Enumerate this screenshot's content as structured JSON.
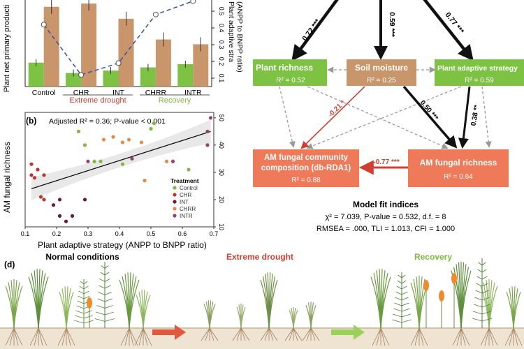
{
  "panel_a": {
    "y_left_label": "Plant net primary producti",
    "y_right_label_1": "Plant adaptive stra",
    "y_right_label_2": "(ANPP to BNPP ratio)",
    "right_ticks": [
      "0.5",
      "0.4",
      "0.3",
      "0.2",
      "0.1"
    ],
    "treatments": [
      "Control",
      "CHR",
      "INT",
      "CHRR",
      "INTR"
    ],
    "group_extreme": "Extreme drought",
    "group_recovery": "Recovery",
    "colors": {
      "anpp": "#7dc243",
      "bnpp": "#c8966a",
      "ratio_line": "#3a4fa0",
      "drought": "#d04030",
      "recovery": "#7dbb3c"
    }
  },
  "chart_data": [
    {
      "type": "bar",
      "panel": "a",
      "categories": [
        "Control",
        "CHR",
        "INT",
        "CHRR",
        "INTR"
      ],
      "series": [
        {
          "values": [
            0.3,
            0.17,
            0.2,
            0.24,
            0.28
          ]
        },
        {
          "values": [
            1.0,
            1.04,
            0.85,
            0.59,
            0.53
          ]
        }
      ],
      "ratio_line": [
        0.42,
        0.12,
        0.19,
        0.48,
        0.56
      ]
    },
    {
      "type": "scatter",
      "panel": "b",
      "title": "Adjusted R² = 0.36; P-value < 0.001",
      "xlabel": "Plant adaptive strategy (ANPP to BNPP ratio)",
      "ylabel": "AM fungal richness",
      "xlim": [
        0.1,
        0.7
      ],
      "ylim": [
        10,
        52
      ],
      "xticks": [
        "0.1",
        "0.2",
        "0.3",
        "0.4",
        "0.5",
        "0.6",
        "0.7"
      ],
      "yticks": [
        "10",
        "20",
        "30",
        "40",
        "50"
      ],
      "legend_title": "Treatment",
      "legend": [
        "Control",
        "CHR",
        "INT",
        "CHRR",
        "INTR"
      ],
      "series": [
        {
          "name": "Control",
          "color": "#7dbb3c",
          "points": [
            [
              0.27,
              45
            ],
            [
              0.29,
              40
            ],
            [
              0.32,
              34
            ],
            [
              0.34,
              34
            ],
            [
              0.41,
              33
            ],
            [
              0.5,
              46
            ],
            [
              0.51,
              48
            ],
            [
              0.62,
              31
            ]
          ]
        },
        {
          "name": "CHR",
          "color": "#c0332b",
          "points": [
            [
              0.12,
              33
            ],
            [
              0.12,
              29
            ],
            [
              0.13,
              28
            ],
            [
              0.14,
              31
            ],
            [
              0.16,
              29
            ],
            [
              0.15,
              21
            ],
            [
              0.16,
              20
            ]
          ]
        },
        {
          "name": "INT",
          "color": "#6a1a3a",
          "points": [
            [
              0.19,
              18
            ],
            [
              0.21,
              14
            ],
            [
              0.23,
              12
            ],
            [
              0.25,
              14
            ],
            [
              0.29,
              20
            ],
            [
              0.21,
              20
            ]
          ]
        },
        {
          "name": "CHRR",
          "color": "#e08a4c",
          "points": [
            [
              0.38,
              43
            ],
            [
              0.41,
              41
            ],
            [
              0.43,
              42
            ],
            [
              0.47,
              41
            ],
            [
              0.35,
              42
            ],
            [
              0.55,
              34
            ],
            [
              0.48,
              27
            ]
          ]
        },
        {
          "name": "INTR",
          "color": "#9a4068",
          "points": [
            [
              0.3,
              34
            ],
            [
              0.44,
              35
            ],
            [
              0.57,
              34
            ],
            [
              0.68,
              45
            ],
            [
              0.69,
              50
            ],
            [
              0.68,
              40
            ]
          ]
        }
      ],
      "fit": [
        [
          0.12,
          24
        ],
        [
          0.69,
          45
        ]
      ]
    }
  ],
  "panel_b": {
    "label": "(b)",
    "stats": "Adjusted R² = 0.36; P-value < 0.001"
  },
  "panel_c": {
    "nodes": {
      "plant_richness": {
        "title": "Plant richness",
        "r2": "R² = 0.52"
      },
      "soil_moisture": {
        "title": "Soil moisture",
        "r2": "R² = 0.25"
      },
      "plant_adaptive": {
        "title": "Plant adaptive strategy",
        "r2": "R² = 0.59"
      },
      "amf_composition": {
        "title1": "AM fungal community",
        "title2": "composition (db-RDA1)",
        "r2": "R² = 0.88"
      },
      "amf_richness": {
        "title": "AM fungal richness",
        "r2": "R² = 0.64"
      }
    },
    "paths": {
      "p1": "0.72 ***",
      "p2": "0.59 ***",
      "p3": "0.77 ***",
      "p4": "-0.21 *",
      "p5": "0.50 ***",
      "p6": "0.38 **",
      "p7": "-0.77 ***"
    },
    "fit_title": "Model fit indices",
    "fit_line1": "χ² = 7.039, P-value = 0.532, d.f. = 8",
    "fit_line2": "RMSEA = .000,  TLI = 1.013, CFI = 1.000",
    "colors": {
      "green": "#7dc243",
      "brown": "#c8966a",
      "orange": "#ee7a5a",
      "red": "#d04030"
    }
  },
  "panel_d": {
    "label": "(d)",
    "normal": "Normal conditions",
    "drought": "Extreme drought",
    "recovery": "Recovery"
  }
}
